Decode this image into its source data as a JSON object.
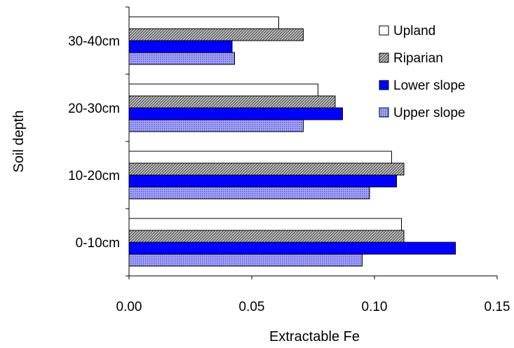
{
  "chart_data": {
    "type": "bar",
    "orientation": "horizontal",
    "categories": [
      "0-10cm",
      "10-20cm",
      "20-30cm",
      "30-40cm"
    ],
    "series": [
      {
        "name": "Upland",
        "values": [
          0.111,
          0.107,
          0.077,
          0.061
        ]
      },
      {
        "name": "Riparian",
        "values": [
          0.112,
          0.112,
          0.084,
          0.071
        ]
      },
      {
        "name": "Lower slope",
        "values": [
          0.133,
          0.109,
          0.087,
          0.042
        ]
      },
      {
        "name": "Upper slope",
        "values": [
          0.095,
          0.098,
          0.071,
          0.043
        ]
      }
    ],
    "xlabel": "Extractable Fe",
    "ylabel": "Soil depth",
    "xlim": [
      0,
      0.15
    ],
    "xticks": [
      "0.00",
      "0.05",
      "0.10",
      "0.15"
    ],
    "grid": false,
    "legend_position": "top-right",
    "series_styles": [
      {
        "fill": "#ffffff",
        "pattern": "none"
      },
      {
        "fill": "#a6a6a6",
        "pattern": "diagonal-hatch-dark"
      },
      {
        "fill": "#0000ff",
        "pattern": "none"
      },
      {
        "fill": "#8f8ff2",
        "pattern": "dotted-blue"
      }
    ]
  }
}
